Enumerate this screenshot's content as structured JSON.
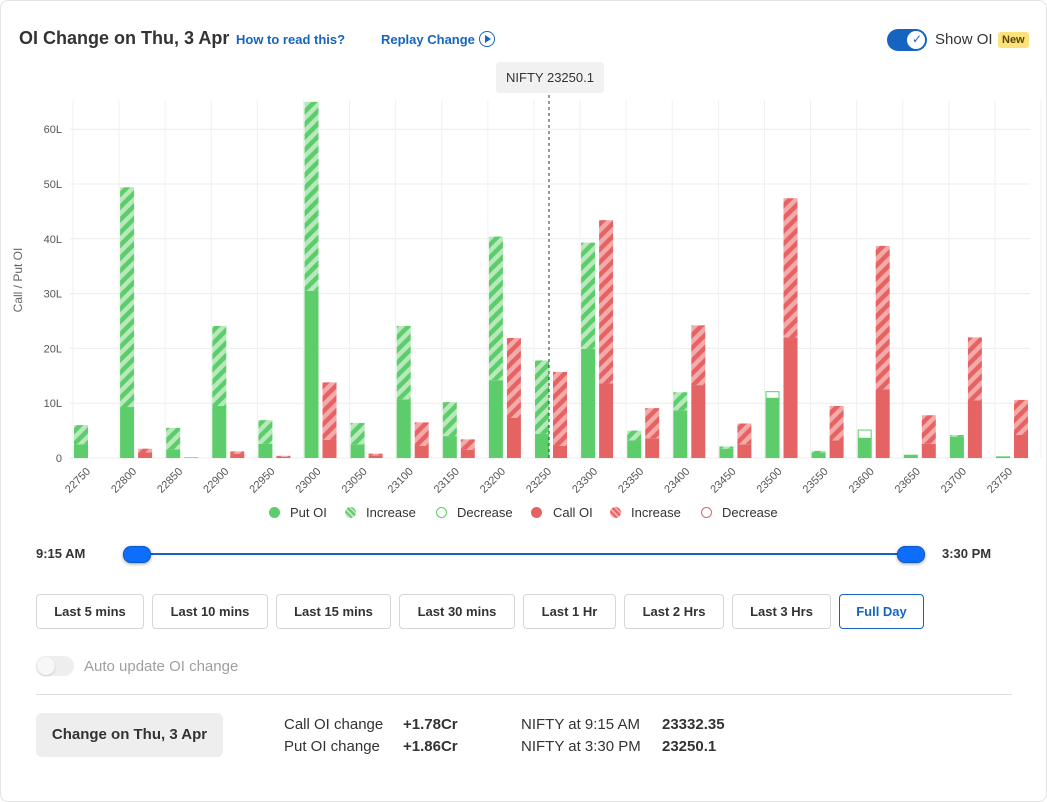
{
  "header": {
    "title": "OI Change on Thu, 3 Apr",
    "how_link": "How to read this?",
    "replay_link": "Replay Change",
    "show_oi_label": "Show OI",
    "new_badge": "New"
  },
  "spot_label": "NIFTY 23250.1",
  "chart_data": {
    "type": "bar",
    "ylabel": "Call / Put OI",
    "ylim": [
      0,
      65
    ],
    "y_ticks": [
      "0",
      "10L",
      "20L",
      "30L",
      "40L",
      "50L",
      "60L"
    ],
    "y_tick_values": [
      0,
      10,
      20,
      30,
      40,
      50,
      60
    ],
    "categories": [
      "22750",
      "22800",
      "22850",
      "22900",
      "22950",
      "23000",
      "23050",
      "23100",
      "23150",
      "23200",
      "23250",
      "23300",
      "23350",
      "23400",
      "23450",
      "23500",
      "23550",
      "23600",
      "23650",
      "23700",
      "23750"
    ],
    "spot_category": "23250",
    "series": [
      {
        "name": "Put OI",
        "values": [
          2.5,
          9.3,
          1.6,
          9.5,
          2.6,
          30.5,
          2.5,
          10.7,
          4.0,
          14.2,
          4.4,
          19.9,
          3.2,
          8.7,
          1.7,
          10.9,
          1.0,
          3.6,
          0.6,
          3.9,
          0.3
        ]
      },
      {
        "name": "Increase",
        "values": [
          3.5,
          40.1,
          3.9,
          14.6,
          4.3,
          34.5,
          3.9,
          13.4,
          6.2,
          26.2,
          13.4,
          19.4,
          1.8,
          3.3,
          0.4,
          0,
          0.3,
          0,
          0,
          0.3,
          0
        ]
      },
      {
        "name": "Decrease",
        "values": [
          0,
          0,
          0,
          0,
          0,
          0,
          0,
          0,
          0,
          0,
          0,
          0,
          0,
          0,
          0,
          1.2,
          0,
          1.5,
          0,
          0,
          0
        ]
      },
      {
        "name": "Call OI",
        "values": [
          0,
          1.0,
          0.1,
          0.8,
          0.2,
          3.3,
          0.5,
          2.2,
          1.5,
          7.3,
          2.2,
          13.6,
          3.6,
          13.3,
          2.5,
          22.0,
          3.2,
          12.5,
          2.6,
          10.5,
          4.2
        ]
      },
      {
        "name": "Increase",
        "values": [
          0,
          0.7,
          0,
          0.4,
          0.2,
          10.5,
          0.3,
          4.3,
          1.9,
          14.6,
          13.5,
          29.8,
          5.5,
          10.9,
          3.8,
          25.4,
          6.3,
          26.2,
          5.2,
          11.5,
          6.4
        ]
      },
      {
        "name": "Decrease",
        "values": [
          0,
          0,
          0,
          0,
          0,
          0,
          0,
          0,
          0,
          0,
          0,
          0,
          0,
          0,
          0,
          0,
          0,
          0,
          0,
          0,
          0
        ]
      }
    ],
    "legend": [
      "Put OI",
      "Increase",
      "Decrease",
      "Call OI",
      "Increase",
      "Decrease"
    ],
    "legend_position": "bottom",
    "grid": true,
    "colors": {
      "put": "#5dcc6a",
      "put_light": "#b7e9bc",
      "call": "#e66363",
      "call_light": "#f4aaaa",
      "spot_line": "#333333"
    }
  },
  "slider": {
    "start_label": "9:15 AM",
    "end_label": "3:30 PM"
  },
  "time_buttons": [
    "Last 5 mins",
    "Last 10 mins",
    "Last 15 mins",
    "Last 30 mins",
    "Last 1 Hr",
    "Last 2 Hrs",
    "Last 3 Hrs",
    "Full Day"
  ],
  "active_button": "Full Day",
  "auto_update_label": "Auto update OI change",
  "change_button": "Change on Thu, 3 Apr",
  "stats": {
    "call_label": "Call OI change",
    "call_value": "+1.78Cr",
    "put_label": "Put OI change",
    "put_value": "+1.86Cr",
    "nifty_open_label": "NIFTY at 9:15 AM",
    "nifty_open_value": "23332.35",
    "nifty_close_label": "NIFTY at 3:30 PM",
    "nifty_close_value": "23250.1"
  },
  "accent_color": "#1565c0"
}
